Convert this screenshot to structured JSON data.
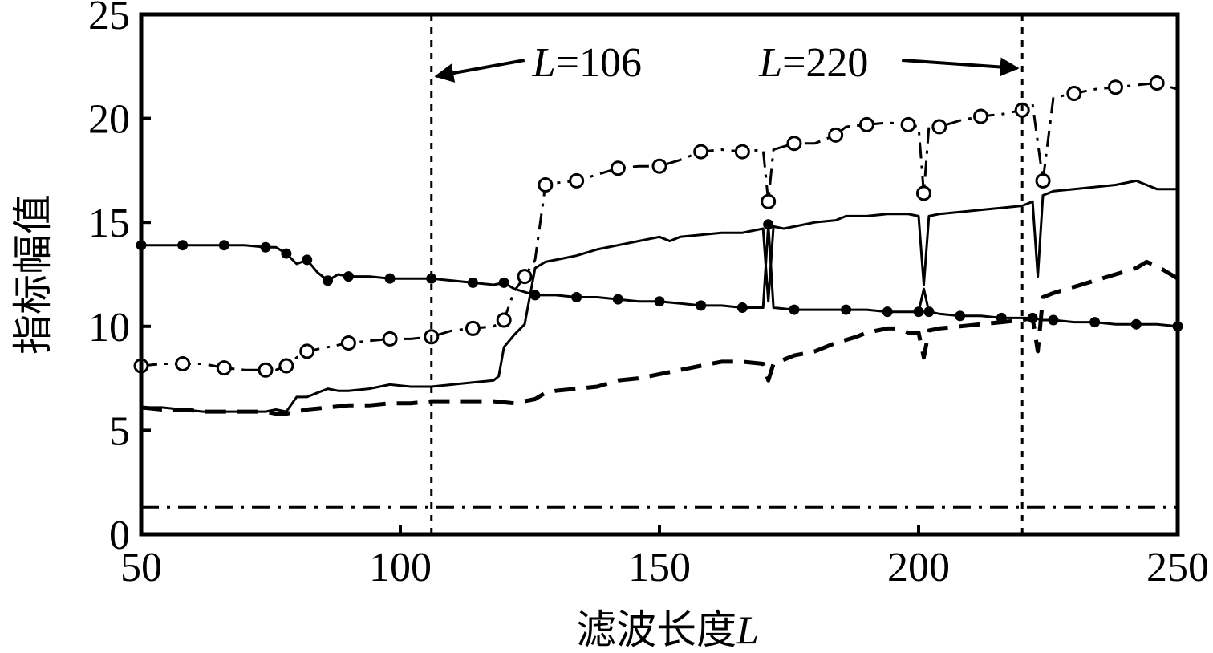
{
  "chart_data": {
    "type": "line",
    "title": "",
    "xlabel": "滤波长度",
    "xlabel_var": "L",
    "ylabel": "指标幅值",
    "xlim": [
      50,
      250
    ],
    "ylim": [
      0,
      25
    ],
    "xticks": [
      "50",
      "100",
      "150",
      "200",
      "250"
    ],
    "yticks": [
      "0",
      "5",
      "10",
      "15",
      "20",
      "25"
    ],
    "grid": false,
    "legend": "none",
    "annotations": [
      {
        "var": "L",
        "text": "=106",
        "x": 106
      },
      {
        "var": "L",
        "text": "=220",
        "x": 220
      }
    ],
    "series": [
      {
        "style": "solid-filled-dots",
        "x": [
          50,
          54,
          58,
          62,
          66,
          70,
          74,
          76,
          78,
          80,
          82,
          84,
          86,
          88,
          90,
          94,
          98,
          102,
          106,
          110,
          114,
          118,
          120,
          122,
          126,
          130,
          134,
          138,
          142,
          146,
          150,
          154,
          158,
          162,
          166,
          170,
          171,
          172,
          176,
          180,
          186,
          190,
          194,
          198,
          200,
          201,
          202,
          204,
          208,
          212,
          216,
          220,
          222,
          224,
          226,
          230,
          234,
          238,
          242,
          246,
          250
        ],
        "values": [
          13.9,
          13.9,
          13.9,
          13.9,
          13.9,
          13.9,
          13.8,
          13.8,
          13.5,
          13.0,
          13.2,
          12.6,
          12.2,
          12.5,
          12.4,
          12.4,
          12.3,
          12.3,
          12.3,
          12.2,
          12.1,
          12.0,
          12.1,
          11.8,
          11.5,
          11.5,
          11.4,
          11.4,
          11.3,
          11.2,
          11.2,
          11.1,
          11.0,
          11.0,
          10.9,
          10.9,
          14.9,
          10.9,
          10.8,
          10.8,
          10.8,
          10.8,
          10.7,
          10.7,
          10.7,
          11.8,
          10.7,
          10.6,
          10.5,
          10.5,
          10.4,
          10.4,
          10.4,
          10.3,
          10.3,
          10.2,
          10.2,
          10.1,
          10.1,
          10.1,
          10.0
        ]
      },
      {
        "style": "dashdot-open-circles",
        "x": [
          50,
          54,
          58,
          62,
          66,
          70,
          74,
          76,
          78,
          80,
          82,
          86,
          90,
          94,
          98,
          102,
          106,
          110,
          114,
          118,
          120,
          122,
          124,
          126,
          128,
          130,
          134,
          138,
          142,
          146,
          150,
          154,
          158,
          162,
          166,
          170,
          171,
          172,
          176,
          180,
          184,
          186,
          190,
          194,
          198,
          200,
          201,
          202,
          204,
          208,
          212,
          216,
          220,
          222,
          224,
          226,
          230,
          234,
          238,
          242,
          246,
          250
        ],
        "values": [
          8.1,
          8.2,
          8.2,
          8.2,
          8.0,
          7.9,
          7.9,
          7.9,
          8.1,
          8.5,
          8.8,
          9.0,
          9.2,
          9.3,
          9.4,
          9.4,
          9.5,
          9.8,
          9.9,
          10.0,
          10.3,
          11.7,
          12.4,
          13.2,
          16.8,
          16.9,
          17.0,
          17.3,
          17.6,
          17.7,
          17.7,
          18.0,
          18.4,
          18.5,
          18.4,
          18.5,
          16.0,
          18.5,
          18.8,
          18.8,
          19.2,
          19.6,
          19.7,
          19.8,
          19.7,
          19.6,
          16.4,
          19.6,
          19.6,
          19.9,
          20.1,
          20.2,
          20.4,
          20.7,
          17.0,
          21.0,
          21.2,
          21.4,
          21.5,
          21.6,
          21.7,
          21.4
        ]
      },
      {
        "style": "solid",
        "x": [
          50,
          54,
          58,
          62,
          66,
          70,
          74,
          76,
          78,
          80,
          82,
          84,
          86,
          88,
          90,
          94,
          98,
          102,
          106,
          110,
          114,
          118,
          119,
          120,
          122,
          124,
          126,
          128,
          130,
          134,
          138,
          142,
          146,
          150,
          152,
          154,
          158,
          162,
          166,
          170,
          171,
          172,
          174,
          176,
          180,
          184,
          186,
          190,
          194,
          198,
          200,
          201,
          202,
          204,
          208,
          212,
          216,
          220,
          222,
          223,
          224,
          226,
          230,
          234,
          238,
          242,
          244,
          246,
          250
        ],
        "values": [
          6.1,
          6.1,
          6.0,
          5.9,
          5.9,
          5.9,
          5.9,
          6.0,
          5.9,
          6.6,
          6.6,
          6.8,
          7.0,
          6.9,
          6.9,
          7.0,
          7.2,
          7.1,
          7.1,
          7.2,
          7.3,
          7.4,
          7.6,
          9.0,
          9.6,
          10.1,
          12.8,
          13.1,
          13.2,
          13.4,
          13.7,
          13.9,
          14.1,
          14.3,
          14.1,
          14.3,
          14.4,
          14.5,
          14.5,
          14.7,
          11.2,
          14.8,
          14.7,
          14.8,
          15.0,
          15.1,
          15.3,
          15.3,
          15.4,
          15.4,
          15.3,
          12.0,
          15.3,
          15.4,
          15.5,
          15.6,
          15.7,
          15.8,
          16.0,
          12.4,
          16.3,
          16.5,
          16.6,
          16.7,
          16.8,
          17.0,
          16.8,
          16.6,
          16.6
        ]
      },
      {
        "style": "dashed",
        "x": [
          50,
          54,
          58,
          62,
          66,
          70,
          74,
          76,
          78,
          80,
          82,
          86,
          90,
          94,
          98,
          102,
          106,
          110,
          114,
          118,
          122,
          126,
          128,
          130,
          134,
          138,
          142,
          146,
          150,
          154,
          158,
          162,
          166,
          170,
          171,
          172,
          176,
          180,
          184,
          188,
          190,
          192,
          194,
          196,
          198,
          200,
          201,
          202,
          204,
          208,
          212,
          216,
          220,
          222,
          223,
          224,
          226,
          230,
          234,
          238,
          242,
          244,
          246,
          250
        ],
        "values": [
          6.1,
          6.0,
          6.0,
          5.9,
          5.9,
          5.9,
          5.9,
          5.8,
          5.8,
          5.9,
          6.0,
          6.1,
          6.2,
          6.2,
          6.3,
          6.3,
          6.4,
          6.4,
          6.4,
          6.4,
          6.3,
          6.5,
          6.8,
          6.9,
          7.0,
          7.1,
          7.4,
          7.5,
          7.7,
          7.9,
          8.1,
          8.3,
          8.3,
          8.2,
          7.4,
          8.2,
          8.6,
          8.8,
          9.2,
          9.5,
          9.7,
          9.8,
          9.9,
          9.9,
          9.7,
          9.7,
          8.5,
          9.8,
          9.9,
          10.0,
          10.1,
          10.2,
          10.3,
          10.4,
          8.8,
          11.4,
          11.6,
          11.9,
          12.2,
          12.5,
          12.8,
          13.1,
          12.9,
          12.3
        ]
      },
      {
        "style": "dashdot",
        "x": [
          50,
          250
        ],
        "values": [
          1.3,
          1.3
        ]
      }
    ]
  }
}
